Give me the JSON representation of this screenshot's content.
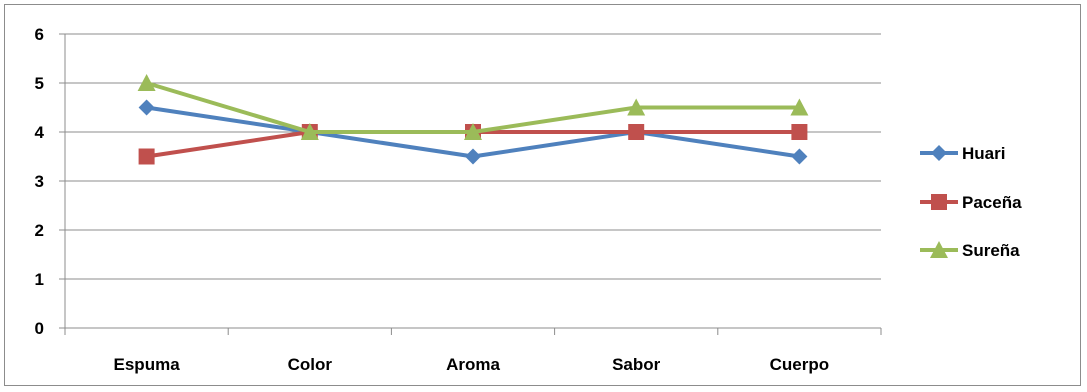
{
  "chart_data": {
    "type": "line",
    "categories": [
      "Espuma",
      "Color",
      "Aroma",
      "Sabor",
      "Cuerpo"
    ],
    "series": [
      {
        "name": "Huari",
        "values": [
          4.5,
          4,
          3.5,
          4,
          3.5
        ],
        "color": "#4f81bd",
        "marker": "diamond"
      },
      {
        "name": "Paceña",
        "values": [
          3.5,
          4,
          4,
          4,
          4
        ],
        "color": "#c0504d",
        "marker": "square"
      },
      {
        "name": "Sureña",
        "values": [
          5,
          4,
          4,
          4.5,
          4.5
        ],
        "color": "#9bbb59",
        "marker": "triangle"
      }
    ],
    "yticks": [
      "0",
      "1",
      "2",
      "3",
      "4",
      "5",
      "6"
    ],
    "ylim": [
      0,
      6
    ],
    "grid": true,
    "legend": "right"
  }
}
